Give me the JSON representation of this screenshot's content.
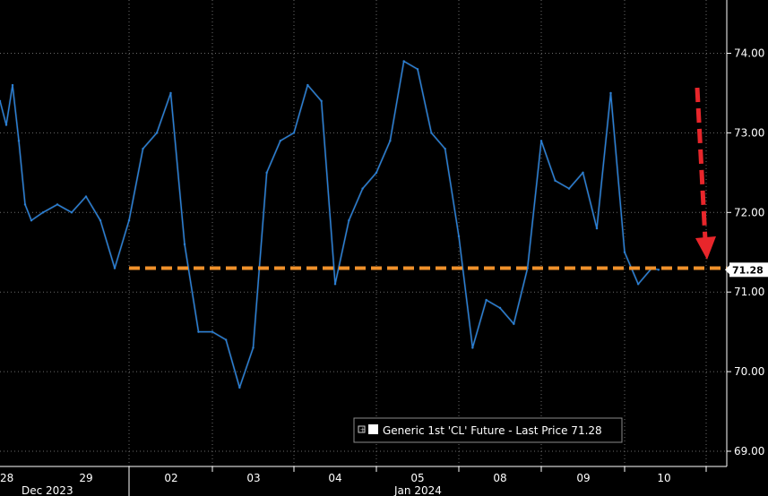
{
  "chart_data": {
    "type": "line",
    "legend": {
      "label": "Generic 1st 'CL' Future - Last Price 71.28",
      "placement": "bottom-right"
    },
    "last_price": 71.28,
    "last_price_label": "71.28",
    "reference_level": 71.3,
    "y_axis": {
      "side": "right",
      "ylim": [
        68.85,
        74.6
      ],
      "ticks": [
        69.0,
        70.0,
        71.0,
        72.0,
        73.0,
        74.0
      ],
      "tick_labels": [
        "69.00",
        "70.00",
        "71.00",
        "72.00",
        "73.00",
        "74.00"
      ]
    },
    "x_axis": {
      "day_labels": [
        "28",
        "29",
        "02",
        "03",
        "04",
        "05",
        "08",
        "09",
        "10"
      ],
      "month_labels": [
        "Dec 2023",
        "Jan 2024"
      ]
    },
    "grid": "dotted",
    "colors": {
      "background": "#000000",
      "line": "#2a7fd4",
      "grid": "#6b6b6b",
      "reference_line": "#f0912b",
      "arrow": "#e8262b",
      "label_box": "#ffffff"
    },
    "series": [
      {
        "x": [
          "12-28 00:00",
          "12-28 04:00",
          "12-28 08:00",
          "12-28 12:00",
          "12-28 16:00",
          "12-28 20:00",
          "12-29 00:00",
          "12-29 04:00",
          "12-29 08:00",
          "12-29 12:00",
          "12-29 16:00",
          "12-29 20:00",
          "01-02 00:00",
          "01-02 04:00",
          "01-02 08:00",
          "01-02 12:00",
          "01-02 16:00",
          "01-02 20:00",
          "01-03 00:00",
          "01-03 04:00",
          "01-03 08:00",
          "01-03 12:00",
          "01-03 16:00",
          "01-03 20:00",
          "01-04 00:00",
          "01-04 04:00",
          "01-04 08:00",
          "01-04 12:00",
          "01-04 16:00",
          "01-04 20:00",
          "01-05 00:00",
          "01-05 04:00",
          "01-05 08:00",
          "01-05 12:00",
          "01-05 16:00",
          "01-05 20:00",
          "01-08 00:00",
          "01-08 04:00",
          "01-08 08:00",
          "01-08 12:00",
          "01-08 16:00",
          "01-08 20:00",
          "01-09 00:00",
          "01-09 04:00",
          "01-09 08:00",
          "01-09 12:00",
          "01-09 16:00",
          "01-09 20:00",
          "01-10 00:00",
          "01-10 04:00",
          "01-10 08:00",
          "01-10 10:00"
        ],
        "values": [
          73.4,
          73.1,
          73.6,
          72.9,
          72.1,
          71.9,
          72.0,
          72.1,
          72.0,
          72.2,
          71.9,
          71.3,
          71.9,
          72.8,
          73.0,
          73.5,
          71.6,
          70.5,
          70.5,
          70.4,
          69.8,
          70.3,
          72.5,
          72.9,
          73.0,
          73.6,
          73.4,
          71.1,
          71.9,
          72.3,
          72.5,
          72.9,
          73.9,
          73.8,
          73.0,
          72.8,
          71.7,
          70.3,
          70.9,
          70.8,
          70.6,
          71.3,
          72.9,
          72.4,
          72.3,
          72.5,
          71.8,
          73.5,
          71.5,
          71.1,
          71.3,
          71.28
        ]
      }
    ]
  }
}
